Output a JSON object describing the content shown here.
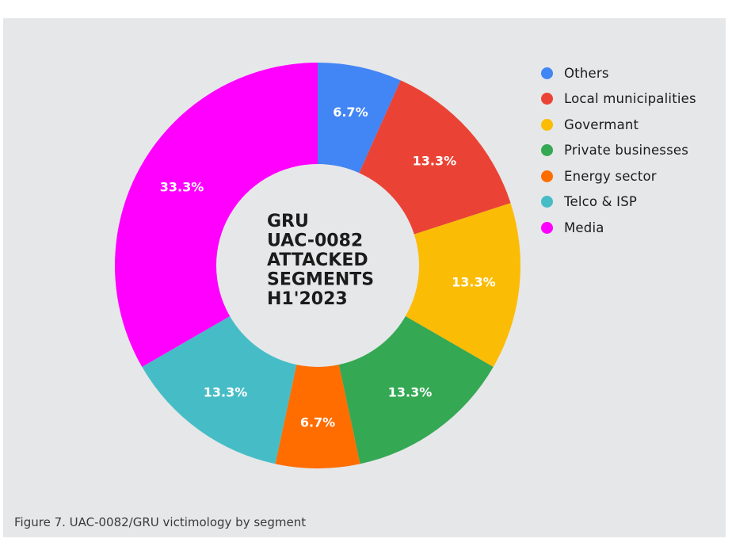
{
  "chart_data": {
    "type": "pie",
    "center_title": [
      "GRU",
      "UAC-0082",
      "ATTACKED",
      "SEGMENTS",
      "H1'2023"
    ],
    "categories": [
      "Others",
      "Local municipalities",
      "Govermant",
      "Private businesses",
      "Energy sector",
      "Telco & ISP",
      "Media"
    ],
    "values": [
      6.7,
      13.3,
      13.3,
      13.3,
      6.7,
      13.3,
      33.3
    ],
    "value_labels": [
      "6.7%",
      "13.3%",
      "13.3%",
      "13.3%",
      "6.7%",
      "13.3%",
      "33.3%"
    ],
    "colors": [
      "#4285f4",
      "#ea4335",
      "#fbbc05",
      "#34a853",
      "#ff6d01",
      "#46bdc6",
      "#ff00ff"
    ],
    "legend_position": "top-right"
  },
  "caption": "Figure 7. UAC-0082/GRU victimology by segment"
}
